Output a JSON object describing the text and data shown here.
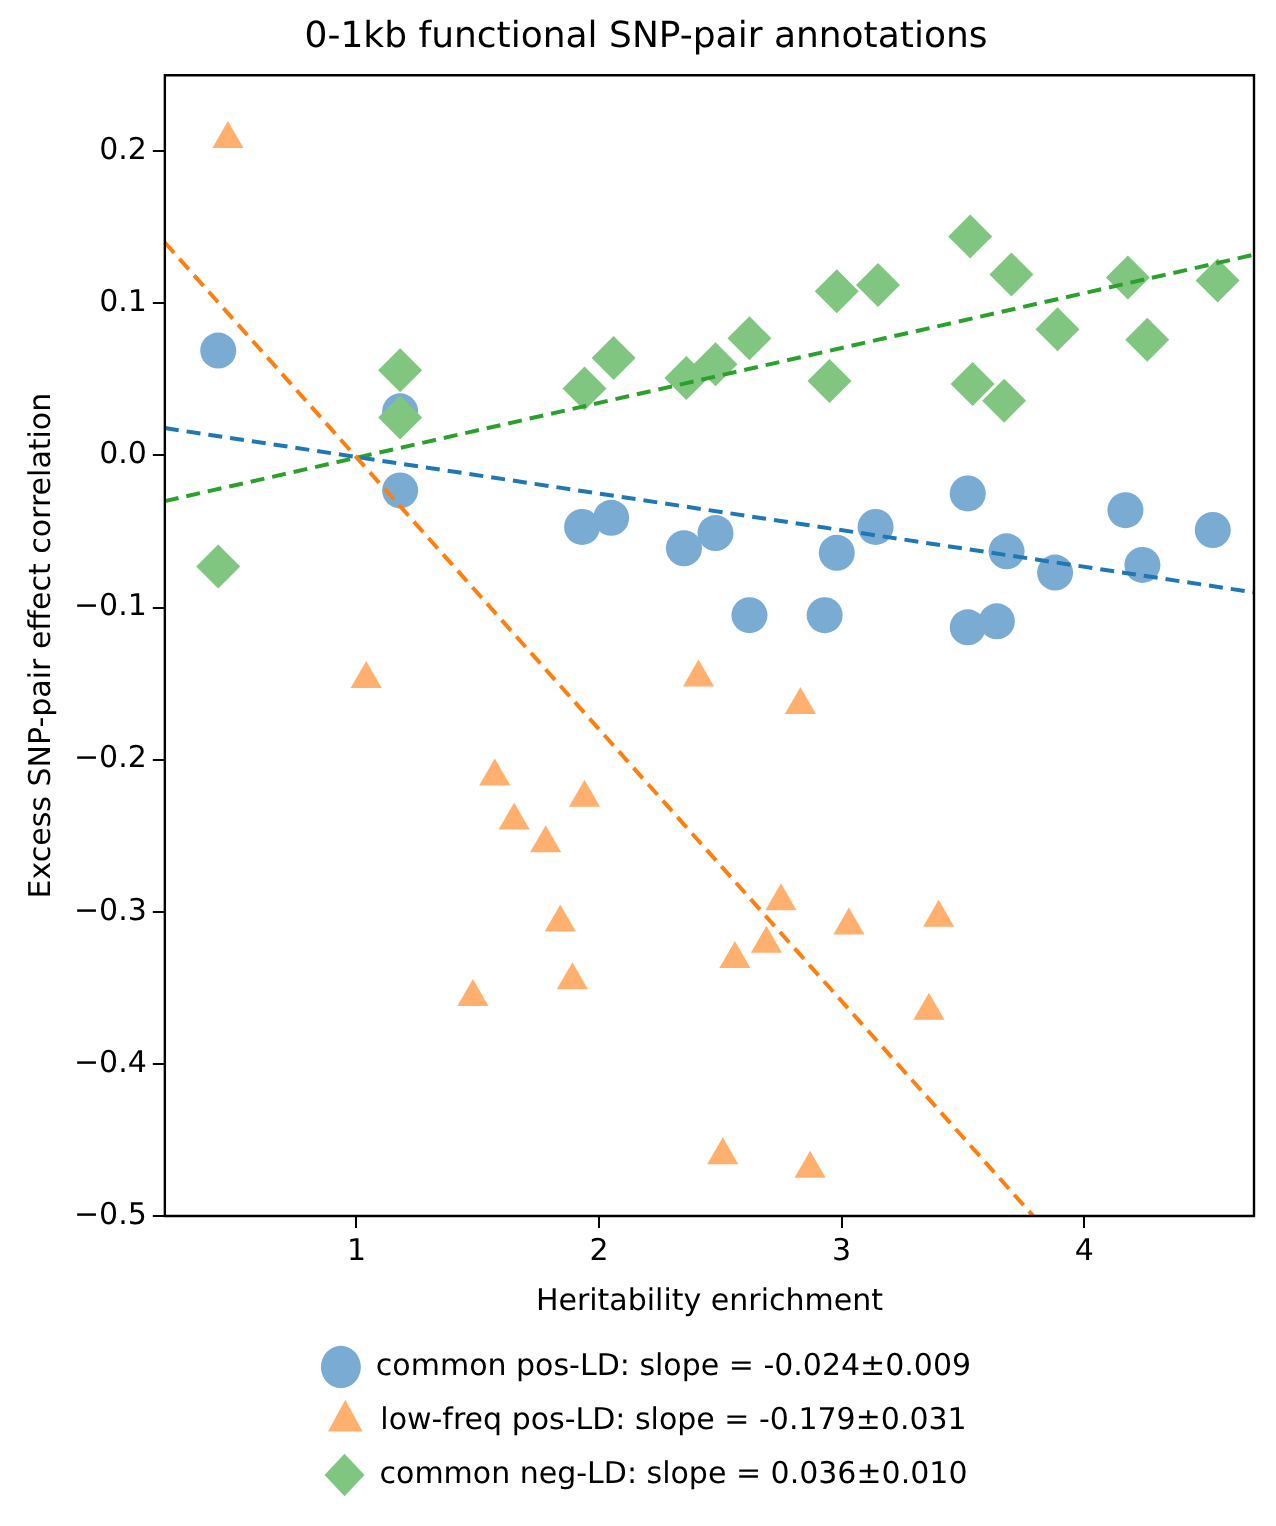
{
  "chart_data": {
    "type": "scatter",
    "title": "0-1kb functional SNP-pair annotations",
    "xlabel": "Heritability enrichment",
    "ylabel": "Excess SNP-pair effect correlation",
    "xlim": [
      0.21,
      4.7
    ],
    "ylim": [
      -0.5,
      0.25
    ],
    "xticks": [
      1,
      2,
      3,
      4
    ],
    "yticks": [
      {
        "value": -0.5,
        "label": "−0.5"
      },
      {
        "value": -0.4,
        "label": "−0.4"
      },
      {
        "value": -0.3,
        "label": "−0.3"
      },
      {
        "value": -0.2,
        "label": "−0.2"
      },
      {
        "value": -0.1,
        "label": "−0.1"
      },
      {
        "value": 0,
        "label": "0.0"
      },
      {
        "value": 0.1,
        "label": "0.1"
      },
      {
        "value": 0.2,
        "label": "0.2"
      }
    ],
    "grid": false,
    "legend": "bottom",
    "series": [
      {
        "name": "common pos-LD: slope = -0.024±0.009",
        "marker": "circle",
        "color": "#7aabd3",
        "x": [
          0.43,
          1.18,
          1.18,
          1.93,
          2.05,
          2.35,
          2.48,
          2.62,
          2.93,
          2.98,
          3.14,
          3.52,
          3.52,
          3.64,
          3.68,
          3.88,
          4.17,
          4.24,
          4.53
        ],
        "values": [
          0.069,
          0.029,
          -0.023,
          -0.047,
          -0.041,
          -0.061,
          -0.051,
          -0.105,
          -0.105,
          -0.064,
          -0.047,
          -0.025,
          -0.113,
          -0.109,
          -0.063,
          -0.077,
          -0.036,
          -0.072,
          -0.049
        ]
      },
      {
        "name": "low-freq pos-LD: slope = -0.179±0.031",
        "marker": "triangle",
        "color": "#ffb06e",
        "x": [
          0.47,
          1.04,
          1.57,
          1.65,
          1.78,
          1.84,
          1.94,
          1.48,
          1.89,
          2.41,
          2.51,
          2.87,
          2.56,
          2.69,
          2.75,
          2.83,
          3.03,
          3.4,
          3.36
        ],
        "values": [
          0.208,
          -0.147,
          -0.211,
          -0.24,
          -0.255,
          -0.307,
          -0.225,
          -0.356,
          -0.345,
          -0.146,
          -0.46,
          -0.469,
          -0.331,
          -0.321,
          -0.293,
          -0.164,
          -0.309,
          -0.304,
          -0.365
        ]
      },
      {
        "name": "common neg-LD: slope = 0.036±0.010",
        "marker": "diamond",
        "color": "#80c680",
        "x": [
          0.43,
          1.18,
          1.18,
          1.94,
          2.06,
          2.36,
          2.48,
          2.62,
          2.95,
          2.98,
          3.15,
          3.53,
          3.54,
          3.7,
          3.67,
          3.89,
          4.18,
          4.26,
          4.55
        ],
        "values": [
          -0.073,
          0.056,
          0.025,
          0.044,
          0.064,
          0.051,
          0.06,
          0.077,
          0.049,
          0.108,
          0.112,
          0.144,
          0.047,
          0.119,
          0.036,
          0.083,
          0.117,
          0.076,
          0.115
        ]
      },
      {
        "type": "line",
        "line_style": "dashed",
        "marker": "none",
        "color": "#1f77b4",
        "x": [
          0.21,
          4.7
        ],
        "values": [
          0.018,
          -0.09
        ]
      },
      {
        "type": "line",
        "line_style": "dashed",
        "marker": "none",
        "color": "#ff7f0e",
        "x": [
          0.21,
          3.79
        ],
        "values": [
          0.14,
          -0.5
        ]
      },
      {
        "type": "line",
        "line_style": "dashed",
        "marker": "none",
        "color": "#2ca02c",
        "x": [
          0.21,
          4.7
        ],
        "values": [
          -0.03,
          0.132
        ]
      }
    ]
  }
}
